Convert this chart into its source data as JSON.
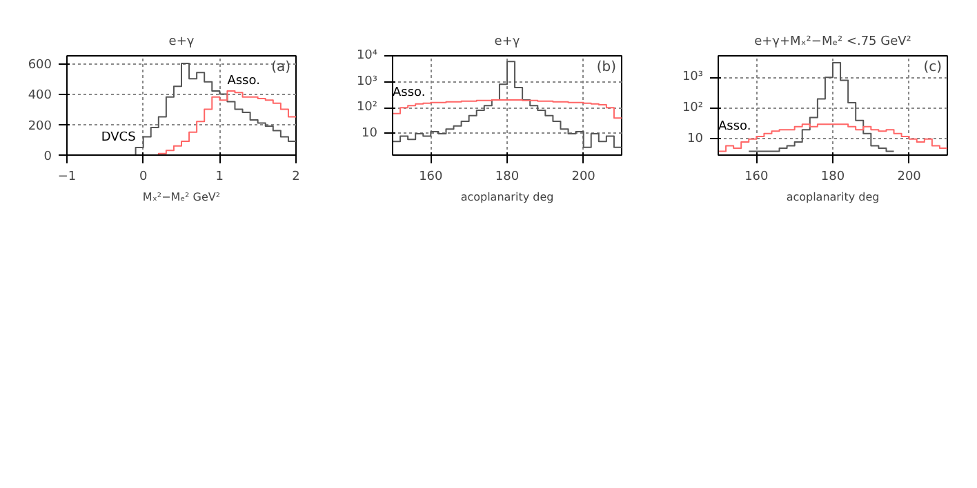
{
  "chart_data": [
    {
      "type": "histogram",
      "title": "e+γ",
      "xlabel": "Mₓ²−Mₑ² GeV²",
      "annotations": [
        "(a)"
      ],
      "grid": true,
      "xlim": [
        -1,
        2
      ],
      "xticks": [
        {
          "value": -1,
          "label": "−1"
        },
        0,
        1,
        2
      ],
      "ylim": [
        0,
        650
      ],
      "yticks": [
        0,
        200,
        400,
        600
      ],
      "bins": [
        -1.0,
        -0.9,
        -0.8,
        -0.7,
        -0.6,
        -0.5,
        -0.4,
        -0.3,
        -0.2,
        -0.1,
        0.0,
        0.1,
        0.2,
        0.3,
        0.4,
        0.5,
        0.6,
        0.7,
        0.8,
        0.9,
        1.0,
        1.1,
        1.2,
        1.3,
        1.4,
        1.5,
        1.6,
        1.7,
        1.8,
        1.9,
        2.0
      ],
      "series": [
        {
          "name": "DVCS",
          "color": "#555555",
          "values": [
            0,
            0,
            0,
            0,
            0,
            0,
            0,
            0,
            0,
            50,
            120,
            180,
            250,
            380,
            450,
            600,
            500,
            540,
            480,
            420,
            400,
            350,
            300,
            280,
            230,
            210,
            190,
            160,
            120,
            90
          ]
        },
        {
          "name": "Asso.",
          "color": "#ff6666",
          "values": [
            0,
            0,
            0,
            0,
            0,
            0,
            0,
            0,
            0,
            0,
            0,
            0,
            10,
            30,
            60,
            90,
            150,
            220,
            300,
            380,
            360,
            420,
            410,
            380,
            380,
            370,
            360,
            340,
            300,
            250
          ]
        }
      ]
    },
    {
      "type": "histogram",
      "title": "e+γ",
      "xlabel": "acoplanarity deg",
      "annotations": [
        "(b)"
      ],
      "grid": true,
      "log": "y",
      "xlim": [
        150,
        210
      ],
      "xticks": [
        160,
        180,
        200
      ],
      "ylim": [
        1.5,
        10000
      ],
      "yticks": [
        10,
        {
          "value": 100,
          "label": "10²"
        },
        {
          "value": 1000,
          "label": "10³"
        },
        {
          "value": 10000,
          "label": "10⁴"
        }
      ],
      "bins": [
        150,
        152,
        154,
        156,
        158,
        160,
        162,
        164,
        166,
        168,
        170,
        172,
        174,
        176,
        178,
        180,
        182,
        184,
        186,
        188,
        190,
        192,
        194,
        196,
        198,
        200,
        202,
        204,
        206,
        208,
        210
      ],
      "series": [
        {
          "color": "#555555",
          "values": [
            5,
            8,
            6,
            10,
            8,
            12,
            10,
            15,
            20,
            30,
            50,
            80,
            120,
            200,
            800,
            6000,
            600,
            200,
            120,
            80,
            50,
            30,
            15,
            10,
            12,
            3,
            10,
            5,
            8,
            3
          ]
        },
        {
          "name": "Asso.",
          "color": "#ff6666",
          "values": [
            60,
            100,
            120,
            140,
            150,
            160,
            160,
            170,
            170,
            180,
            180,
            190,
            190,
            200,
            200,
            200,
            200,
            190,
            190,
            180,
            180,
            170,
            170,
            160,
            160,
            150,
            140,
            130,
            100,
            40
          ]
        }
      ]
    },
    {
      "type": "histogram",
      "title": "e+γ+Mₓ²−Mₑ² <.75 GeV²",
      "xlabel": "acoplanarity deg",
      "annotations": [
        "(c)"
      ],
      "grid": true,
      "log": "y",
      "xlim": [
        150,
        210
      ],
      "xticks": [
        160,
        180,
        200
      ],
      "ylim": [
        3,
        5000
      ],
      "yticks": [
        10,
        {
          "value": 100,
          "label": "10²"
        },
        {
          "value": 1000,
          "label": "10³"
        }
      ],
      "bins": [
        150,
        152,
        154,
        156,
        158,
        160,
        162,
        164,
        166,
        168,
        170,
        172,
        174,
        176,
        178,
        180,
        182,
        184,
        186,
        188,
        190,
        192,
        194,
        196,
        198,
        200,
        202,
        204,
        206,
        208,
        210
      ],
      "series": [
        {
          "color": "#555555",
          "bins": [
            158,
            160,
            162,
            164,
            166,
            168,
            170,
            172,
            174,
            176,
            178,
            180,
            182,
            184,
            186,
            188,
            190,
            192,
            194,
            196
          ],
          "values": [
            4,
            4,
            4,
            4,
            5,
            6,
            8,
            20,
            50,
            200,
            1000,
            3000,
            800,
            150,
            40,
            15,
            6,
            5,
            4
          ]
        },
        {
          "name": "Asso.",
          "color": "#ff6666",
          "values": [
            4,
            6,
            5,
            8,
            10,
            12,
            15,
            18,
            20,
            20,
            25,
            30,
            25,
            30,
            30,
            30,
            30,
            25,
            20,
            25,
            20,
            18,
            20,
            15,
            12,
            10,
            8,
            10,
            6,
            5
          ]
        }
      ]
    }
  ]
}
